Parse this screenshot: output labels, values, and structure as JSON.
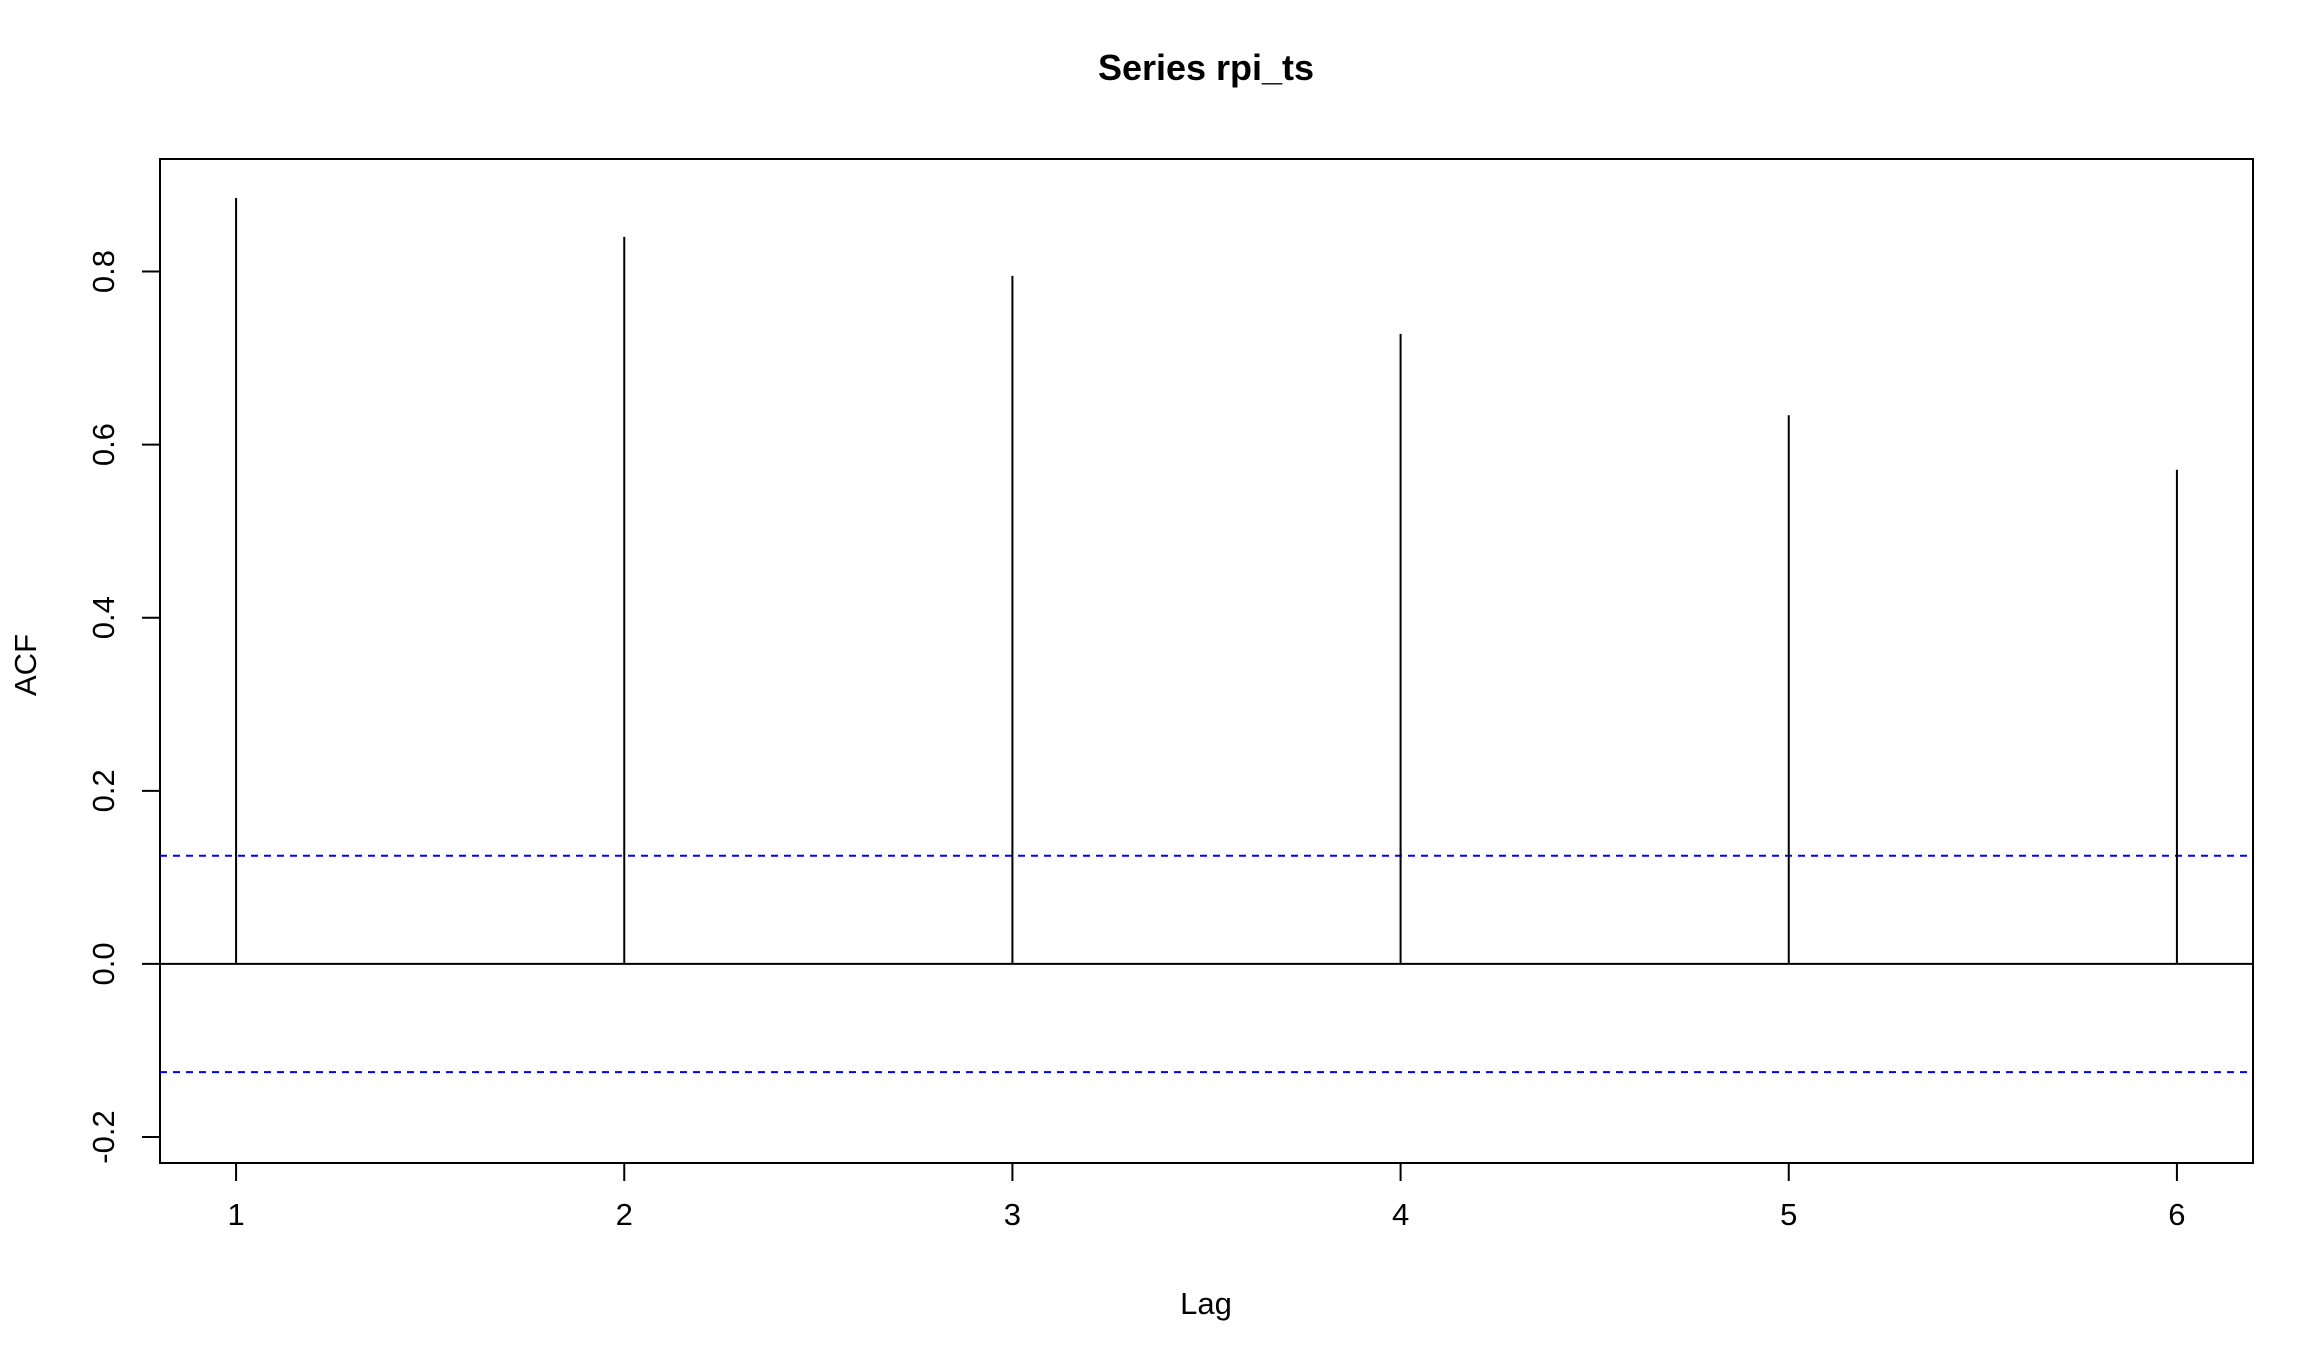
{
  "chart_data": {
    "type": "bar",
    "title": "Series  rpi_ts",
    "xlabel": "Lag",
    "ylabel": "ACF",
    "x": [
      1,
      2,
      3,
      4,
      5,
      6
    ],
    "values": [
      0.885,
      0.84,
      0.795,
      0.728,
      0.634,
      0.571
    ],
    "xlim": [
      0.804,
      6.196
    ],
    "ylim": [
      -0.23,
      0.93
    ],
    "x_ticks": [
      "1",
      "2",
      "3",
      "4",
      "5",
      "6"
    ],
    "y_ticks": [
      "-0.2",
      "0.0",
      "0.2",
      "0.4",
      "0.6",
      "0.8"
    ],
    "y_tick_values": [
      -0.2,
      0.0,
      0.2,
      0.4,
      0.6,
      0.8
    ],
    "confidence_bound": 0.125,
    "zero_line": 0.0,
    "grid": false,
    "legend": "none",
    "colors": {
      "bars": "#000000",
      "confidence_lines": "#0000ff",
      "frame": "#000000"
    }
  }
}
